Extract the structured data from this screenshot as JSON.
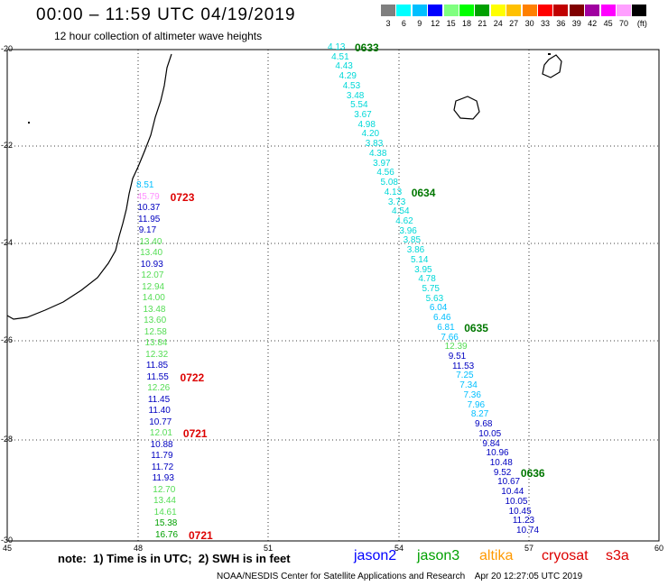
{
  "title": "00:00 – 11:59 UTC 04/19/2019",
  "subtitle": "12 hour collection of altimeter wave heights",
  "legend": {
    "unit": "(ft)",
    "items": [
      {
        "label": "3",
        "color": "#7f7f7f"
      },
      {
        "label": "6",
        "color": "#00ffff"
      },
      {
        "label": "9",
        "color": "#00bfff"
      },
      {
        "label": "12",
        "color": "#0000ff"
      },
      {
        "label": "15",
        "color": "#7fff7f"
      },
      {
        "label": "18",
        "color": "#00ff00"
      },
      {
        "label": "21",
        "color": "#00a000"
      },
      {
        "label": "24",
        "color": "#ffff00"
      },
      {
        "label": "27",
        "color": "#ffc000"
      },
      {
        "label": "30",
        "color": "#ff8000"
      },
      {
        "label": "33",
        "color": "#ff0000"
      },
      {
        "label": "36",
        "color": "#c00000"
      },
      {
        "label": "39",
        "color": "#800000"
      },
      {
        "label": "42",
        "color": "#a000a0"
      },
      {
        "label": "45",
        "color": "#ff00ff"
      },
      {
        "label": "70",
        "color": "#ffa0ff"
      },
      {
        "label": "",
        "color": "#000000"
      }
    ]
  },
  "axes": {
    "x_ticks": [
      "45",
      "48",
      "51",
      "54",
      "57",
      "60"
    ],
    "y_ticks": [
      "-20",
      "-22",
      "-24",
      "-26",
      "-28",
      "-30"
    ]
  },
  "track_right": {
    "values": [
      {
        "v": "4.13",
        "c": "#00d8d8"
      },
      {
        "v": "4.51",
        "c": "#00d8d8"
      },
      {
        "v": "4.43",
        "c": "#00d8d8"
      },
      {
        "v": "4.29",
        "c": "#00d8d8"
      },
      {
        "v": "4.53",
        "c": "#00d8d8"
      },
      {
        "v": "3.48",
        "c": "#00d8d8"
      },
      {
        "v": "5.54",
        "c": "#00d8d8"
      },
      {
        "v": "3.67",
        "c": "#00d8d8"
      },
      {
        "v": "4.98",
        "c": "#00d8d8"
      },
      {
        "v": "4.20",
        "c": "#00d8d8"
      },
      {
        "v": "3.83",
        "c": "#00d8d8"
      },
      {
        "v": "4.38",
        "c": "#00d8d8"
      },
      {
        "v": "3.97",
        "c": "#00d8d8"
      },
      {
        "v": "4.56",
        "c": "#00d8d8"
      },
      {
        "v": "5.08",
        "c": "#00d8d8"
      },
      {
        "v": "4.13",
        "c": "#00d8d8"
      },
      {
        "v": "3.73",
        "c": "#00d8d8"
      },
      {
        "v": "4.54",
        "c": "#00d8d8"
      },
      {
        "v": "4.62",
        "c": "#00d8d8"
      },
      {
        "v": "3.96",
        "c": "#00d8d8"
      },
      {
        "v": "3.85",
        "c": "#00d8d8"
      },
      {
        "v": "3.86",
        "c": "#00d8d8"
      },
      {
        "v": "5.14",
        "c": "#00d8d8"
      },
      {
        "v": "3.95",
        "c": "#00d8d8"
      },
      {
        "v": "4.78",
        "c": "#00d8d8"
      },
      {
        "v": "5.75",
        "c": "#00d8d8"
      },
      {
        "v": "5.63",
        "c": "#00d8d8"
      },
      {
        "v": "6.04",
        "c": "#00bfff"
      },
      {
        "v": "6.46",
        "c": "#00bfff"
      },
      {
        "v": "6.81",
        "c": "#00bfff"
      },
      {
        "v": "7.66",
        "c": "#00bfff"
      },
      {
        "v": "12.39",
        "c": "#55dd55"
      },
      {
        "v": "9.51",
        "c": "#0000c0"
      },
      {
        "v": "11.53",
        "c": "#0000c0"
      },
      {
        "v": "7.25",
        "c": "#00bfff"
      },
      {
        "v": "7.34",
        "c": "#00bfff"
      },
      {
        "v": "7.36",
        "c": "#00bfff"
      },
      {
        "v": "7.96",
        "c": "#00bfff"
      },
      {
        "v": "8.27",
        "c": "#00bfff"
      },
      {
        "v": "9.68",
        "c": "#0000c0"
      },
      {
        "v": "10.05",
        "c": "#0000c0"
      },
      {
        "v": "9.84",
        "c": "#0000c0"
      },
      {
        "v": "10.96",
        "c": "#0000c0"
      },
      {
        "v": "10.48",
        "c": "#0000c0"
      },
      {
        "v": "9.52",
        "c": "#0000c0"
      },
      {
        "v": "10.67",
        "c": "#0000c0"
      },
      {
        "v": "10.44",
        "c": "#0000c0"
      },
      {
        "v": "10.05",
        "c": "#0000c0"
      },
      {
        "v": "10.45",
        "c": "#0000c0"
      },
      {
        "v": "11.23",
        "c": "#0000c0"
      },
      {
        "v": "10.74",
        "c": "#0000c0"
      }
    ],
    "times": [
      {
        "t": "0633",
        "c": "#007700"
      },
      {
        "t": "0634",
        "c": "#007700"
      },
      {
        "t": "0635",
        "c": "#007700"
      },
      {
        "t": "0636",
        "c": "#007700"
      }
    ]
  },
  "track_left": {
    "values": [
      {
        "v": "8.51",
        "c": "#00bfff"
      },
      {
        "v": "45.79",
        "c": "#ff90ff"
      },
      {
        "v": "10.37",
        "c": "#0000c0"
      },
      {
        "v": "11.95",
        "c": "#0000c0"
      },
      {
        "v": "9.17",
        "c": "#0000c0"
      },
      {
        "v": "13.40",
        "c": "#55dd55"
      },
      {
        "v": "13.40",
        "c": "#55dd55"
      },
      {
        "v": "10.93",
        "c": "#0000c0"
      },
      {
        "v": "12.07",
        "c": "#55dd55"
      },
      {
        "v": "12.94",
        "c": "#55dd55"
      },
      {
        "v": "14.00",
        "c": "#55dd55"
      },
      {
        "v": "13.48",
        "c": "#55dd55"
      },
      {
        "v": "13.60",
        "c": "#55dd55"
      },
      {
        "v": "12.58",
        "c": "#55dd55"
      },
      {
        "v": "13.84",
        "c": "#55dd55"
      },
      {
        "v": "12.32",
        "c": "#55dd55"
      },
      {
        "v": "11.85",
        "c": "#0000c0"
      },
      {
        "v": "11.55",
        "c": "#0000c0"
      },
      {
        "v": "12.26",
        "c": "#55dd55"
      },
      {
        "v": "11.45",
        "c": "#0000c0"
      },
      {
        "v": "11.40",
        "c": "#0000c0"
      },
      {
        "v": "10.77",
        "c": "#0000c0"
      },
      {
        "v": "12.01",
        "c": "#55dd55"
      },
      {
        "v": "10.88",
        "c": "#0000c0"
      },
      {
        "v": "11.79",
        "c": "#0000c0"
      },
      {
        "v": "11.72",
        "c": "#0000c0"
      },
      {
        "v": "11.93",
        "c": "#0000c0"
      },
      {
        "v": "12.70",
        "c": "#55dd55"
      },
      {
        "v": "13.44",
        "c": "#55dd55"
      },
      {
        "v": "14.61",
        "c": "#55dd55"
      },
      {
        "v": "15.38",
        "c": "#00a000"
      },
      {
        "v": "16.76",
        "c": "#00a000"
      }
    ],
    "times": [
      {
        "t": "0723",
        "c": "#dd0000"
      },
      {
        "t": "0722",
        "c": "#dd0000"
      },
      {
        "t": "0721",
        "c": "#dd0000"
      },
      {
        "t": "0721",
        "c": "#dd0000"
      }
    ]
  },
  "note": "note:  1) Time is in UTC;  2) SWH is in feet",
  "satellites": [
    {
      "name": "jason2",
      "color": "#0000ff"
    },
    {
      "name": "jason3",
      "color": "#00a000"
    },
    {
      "name": "altika",
      "color": "#ff9900"
    },
    {
      "name": "cryosat",
      "color": "#dd0000"
    },
    {
      "name": "s3a",
      "color": "#dd0000"
    }
  ],
  "credit": "NOAA/NESDIS Center for Satellite Applications and Research    Apr 20 12:27:05 UTC 2019"
}
